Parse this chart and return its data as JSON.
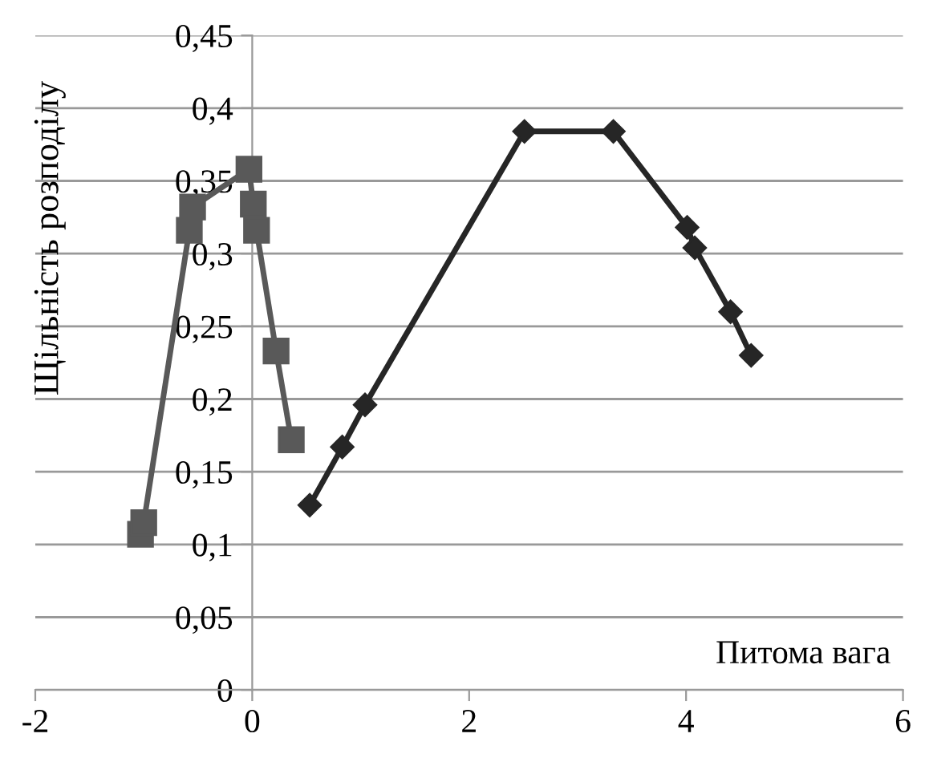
{
  "chart_data": {
    "type": "line",
    "xlabel": "Питома вага",
    "ylabel": "Щільність розподілу",
    "series": [
      {
        "color": "#595959",
        "marker": "square",
        "x": [
          -1.03,
          -1.0,
          -0.58,
          -0.55,
          -0.03,
          0.01,
          0.04,
          0.22,
          0.36
        ],
        "values": [
          0.107,
          0.115,
          0.316,
          0.332,
          0.358,
          0.334,
          0.316,
          0.233,
          0.172
        ]
      },
      {
        "color": "#262626",
        "marker": "diamond",
        "x": [
          0.53,
          0.83,
          1.04,
          2.51,
          3.33,
          4.01,
          4.08,
          4.41,
          4.6
        ],
        "values": [
          0.127,
          0.167,
          0.196,
          0.384,
          0.384,
          0.318,
          0.304,
          0.26,
          0.23
        ]
      }
    ],
    "xlim": [
      -2,
      6
    ],
    "xticks": [
      -2,
      0,
      2,
      4,
      6
    ],
    "ylim": [
      0,
      0.45
    ],
    "yticks": [
      {
        "value": 0,
        "label": "0"
      },
      {
        "value": 0.05,
        "label": "0,05"
      },
      {
        "value": 0.1,
        "label": "0,1"
      },
      {
        "value": 0.15,
        "label": "0,15"
      },
      {
        "value": 0.2,
        "label": "0,2"
      },
      {
        "value": 0.25,
        "label": "0,25"
      },
      {
        "value": 0.3,
        "label": "0,3"
      },
      {
        "value": 0.35,
        "label": "0,35"
      },
      {
        "value": 0.4,
        "label": "0,4"
      },
      {
        "value": 0.45,
        "label": "0,45"
      }
    ],
    "grid": "y",
    "legend": false
  }
}
